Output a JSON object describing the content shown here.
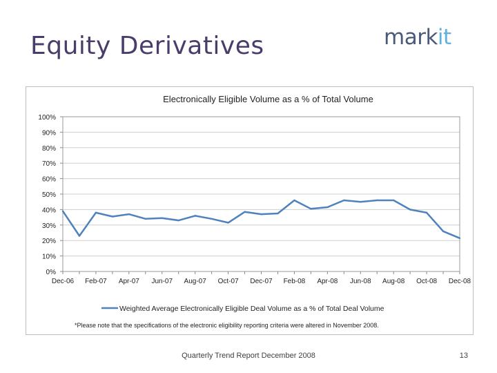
{
  "slide": {
    "title": "Equity Derivatives",
    "logo_part1": "mark",
    "logo_part2": "it",
    "footer": "Quarterly Trend Report December 2008",
    "page_number": "13"
  },
  "colors": {
    "title": "#4b3d6b",
    "line": "#4f81bd",
    "logo_dark": "#4b5a78",
    "logo_light": "#5fb2df"
  },
  "chart_data": {
    "type": "line",
    "title": "Electronically Eligible Volume as a % of Total Volume",
    "xlabel": "",
    "ylabel": "",
    "x_tick_labels": [
      "Dec-06",
      "Feb-07",
      "Apr-07",
      "Jun-07",
      "Aug-07",
      "Oct-07",
      "Dec-07",
      "Feb-08",
      "Apr-08",
      "Jun-08",
      "Aug-08",
      "Oct-08",
      "Dec-08"
    ],
    "y_tick_labels": [
      "0%",
      "10%",
      "20%",
      "30%",
      "40%",
      "50%",
      "60%",
      "70%",
      "80%",
      "90%",
      "100%"
    ],
    "ylim": [
      0,
      100
    ],
    "x": [
      "Dec-06",
      "Jan-07",
      "Feb-07",
      "Mar-07",
      "Apr-07",
      "May-07",
      "Jun-07",
      "Jul-07",
      "Aug-07",
      "Sep-07",
      "Oct-07",
      "Nov-07",
      "Dec-07",
      "Jan-08",
      "Feb-08",
      "Mar-08",
      "Apr-08",
      "May-08",
      "Jun-08",
      "Jul-08",
      "Aug-08",
      "Sep-08",
      "Oct-08",
      "Nov-08",
      "Dec-08"
    ],
    "series": [
      {
        "name": "Weighted Average Electronically Eligible Deal Volume as a % of Total Deal Volume",
        "values": [
          39,
          23,
          38,
          35.5,
          37,
          34,
          34.5,
          33,
          36,
          34,
          31.5,
          38.5,
          37,
          37.5,
          46,
          40.5,
          41.5,
          46,
          45,
          46,
          46,
          40,
          38,
          26,
          21.5
        ]
      }
    ],
    "legend_position": "bottom",
    "grid": true,
    "note": "*Please note that the specifications of the electronic eligibility reporting criteria were altered in November 2008."
  }
}
